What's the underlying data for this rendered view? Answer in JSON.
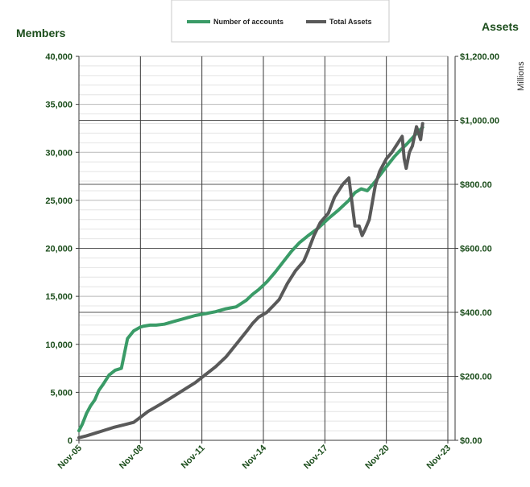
{
  "chart_data": {
    "type": "line",
    "legend_position": "top-center",
    "grid": true,
    "y_left": {
      "label": "Members",
      "ylim": [
        0,
        40000
      ],
      "ticks": [
        "0",
        "5,000",
        "10,000",
        "15,000",
        "20,000",
        "25,000",
        "30,000",
        "35,000",
        "40,000"
      ]
    },
    "y_right": {
      "label": "Assets",
      "unit": "Millions",
      "ylim": [
        0,
        1200
      ],
      "ticks": [
        "$0.00",
        "$200.00",
        "$400.00",
        "$600.00",
        "$800.00",
        "$1,000.00",
        "$1,200.00"
      ]
    },
    "x_ticks": [
      "Nov-05",
      "Nov-08",
      "Nov-11",
      "Nov-14",
      "Nov-17",
      "Nov-20",
      "Nov-23"
    ],
    "series": [
      {
        "name": "Number of accounts",
        "axis": "left",
        "color": "#3a9b67",
        "x": [
          2005.83,
          2006.0,
          2006.2,
          2006.4,
          2006.6,
          2006.8,
          2007.0,
          2007.3,
          2007.6,
          2007.9,
          2008.2,
          2008.5,
          2008.83,
          2009.0,
          2009.3,
          2009.6,
          2010.0,
          2010.5,
          2011.0,
          2011.5,
          2012.0,
          2012.5,
          2013.0,
          2013.5,
          2014.0,
          2014.3,
          2014.6,
          2015.0,
          2015.4,
          2015.8,
          2016.2,
          2016.6,
          2017.0,
          2017.5,
          2018.0,
          2018.5,
          2019.0,
          2019.3,
          2019.6,
          2019.9,
          2020.3,
          2020.83,
          2021.2,
          2021.5,
          2021.8,
          2022.1,
          2022.4,
          2022.6
        ],
        "values": [
          1000,
          1700,
          2800,
          3600,
          4200,
          5200,
          5800,
          6800,
          7300,
          7500,
          10600,
          11400,
          11800,
          11900,
          12000,
          12000,
          12100,
          12400,
          12700,
          13000,
          13200,
          13400,
          13700,
          13900,
          14600,
          15200,
          15700,
          16500,
          17500,
          18600,
          19700,
          20600,
          21300,
          22100,
          23100,
          24000,
          25000,
          25800,
          26200,
          26000,
          27000,
          28500,
          29500,
          30200,
          30800,
          31500,
          32200,
          32600
        ]
      },
      {
        "name": "Total Assets",
        "axis": "right",
        "color": "#595959",
        "x": [
          2005.83,
          2006.2,
          2006.6,
          2007.0,
          2007.5,
          2008.0,
          2008.5,
          2008.83,
          2009.2,
          2009.6,
          2010.0,
          2010.5,
          2011.0,
          2011.5,
          2012.0,
          2012.5,
          2013.0,
          2013.5,
          2014.0,
          2014.3,
          2014.6,
          2015.0,
          2015.3,
          2015.6,
          2016.0,
          2016.4,
          2016.8,
          2017.0,
          2017.3,
          2017.6,
          2018.0,
          2018.3,
          2018.7,
          2019.0,
          2019.3,
          2019.5,
          2019.65,
          2019.8,
          2020.0,
          2020.3,
          2020.5,
          2020.83,
          2021.1,
          2021.4,
          2021.6,
          2021.7,
          2021.8,
          2021.95,
          2022.1,
          2022.2,
          2022.3,
          2022.4,
          2022.5,
          2022.6
        ],
        "values": [
          8,
          14,
          22,
          30,
          40,
          48,
          56,
          72,
          90,
          105,
          120,
          140,
          160,
          180,
          205,
          230,
          260,
          300,
          340,
          365,
          385,
          400,
          420,
          440,
          490,
          530,
          560,
          590,
          640,
          680,
          710,
          760,
          800,
          820,
          670,
          670,
          640,
          660,
          690,
          800,
          840,
          880,
          900,
          930,
          950,
          880,
          850,
          900,
          920,
          950,
          980,
          960,
          940,
          990
        ]
      }
    ]
  }
}
